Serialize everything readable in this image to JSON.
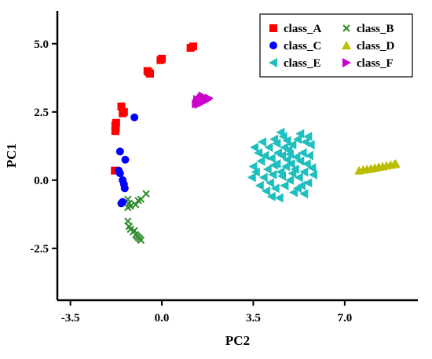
{
  "chart_data": {
    "type": "scatter",
    "xlabel": "PC2",
    "ylabel": "PC1",
    "xlim": [
      -4.0,
      9.8
    ],
    "ylim": [
      -4.4,
      6.2
    ],
    "xticks": [
      -3.5,
      0.0,
      3.5,
      7.0
    ],
    "xtick_labels": [
      "-3.5",
      "0.0",
      "3.5",
      "7.0"
    ],
    "yticks": [
      -2.5,
      0.0,
      2.5,
      5.0
    ],
    "ytick_labels": [
      "-2.5",
      "0.0",
      "2.5",
      "5.0"
    ],
    "grid": false,
    "legend_position": "top-right",
    "series": [
      {
        "name": "class_A",
        "marker": "square",
        "color": "#ff0000",
        "points": [
          [
            -1.8,
            0.35
          ],
          [
            -1.78,
            1.8
          ],
          [
            -1.76,
            1.9
          ],
          [
            -1.78,
            2.0
          ],
          [
            -1.75,
            2.1
          ],
          [
            -1.5,
            2.45
          ],
          [
            -1.45,
            2.5
          ],
          [
            -1.55,
            2.7
          ],
          [
            -0.55,
            4.0
          ],
          [
            -0.5,
            3.95
          ],
          [
            -0.45,
            3.9
          ],
          [
            -0.05,
            4.4
          ],
          [
            0.0,
            4.45
          ],
          [
            1.1,
            4.85
          ],
          [
            1.2,
            4.9
          ]
        ]
      },
      {
        "name": "class_B",
        "marker": "x",
        "color": "#2e8b2e",
        "points": [
          [
            -1.3,
            -0.7
          ],
          [
            -1.25,
            -0.85
          ],
          [
            -1.2,
            -0.95
          ],
          [
            -1.3,
            -1.0
          ],
          [
            -1.0,
            -0.9
          ],
          [
            -0.9,
            -0.75
          ],
          [
            -0.8,
            -0.7
          ],
          [
            -0.6,
            -0.5
          ],
          [
            -1.3,
            -1.5
          ],
          [
            -1.25,
            -1.7
          ],
          [
            -1.2,
            -1.8
          ],
          [
            -1.1,
            -1.9
          ],
          [
            -1.05,
            -1.85
          ],
          [
            -1.0,
            -2.0
          ],
          [
            -0.95,
            -2.05
          ],
          [
            -0.9,
            -2.1
          ],
          [
            -0.85,
            -2.15
          ],
          [
            -0.8,
            -2.2
          ]
        ]
      },
      {
        "name": "class_C",
        "marker": "circle",
        "color": "#0000ff",
        "points": [
          [
            -1.05,
            2.3
          ],
          [
            -1.6,
            1.05
          ],
          [
            -1.4,
            0.75
          ],
          [
            -1.65,
            0.35
          ],
          [
            -1.6,
            0.25
          ],
          [
            -1.5,
            0.0
          ],
          [
            -1.45,
            -0.15
          ],
          [
            -1.42,
            -0.3
          ],
          [
            -1.55,
            -0.85
          ],
          [
            -1.5,
            -0.8
          ]
        ]
      },
      {
        "name": "class_D",
        "marker": "triangle-up",
        "color": "#bdbd00",
        "points": [
          [
            7.55,
            0.35
          ],
          [
            7.7,
            0.38
          ],
          [
            7.85,
            0.4
          ],
          [
            8.0,
            0.42
          ],
          [
            8.15,
            0.45
          ],
          [
            8.3,
            0.48
          ],
          [
            8.45,
            0.5
          ],
          [
            8.6,
            0.53
          ],
          [
            8.75,
            0.56
          ],
          [
            8.9,
            0.58
          ],
          [
            8.95,
            0.6
          ]
        ]
      },
      {
        "name": "class_E",
        "marker": "triangle-left",
        "color": "#1fbfbf",
        "points": [
          [
            3.5,
            0.5
          ],
          [
            3.55,
            1.2
          ],
          [
            3.6,
            0.3
          ],
          [
            3.7,
            1.0
          ],
          [
            3.75,
            -0.2
          ],
          [
            3.8,
            0.7
          ],
          [
            3.85,
            1.4
          ],
          [
            3.9,
            0.1
          ],
          [
            3.95,
            0.9
          ],
          [
            4.0,
            -0.4
          ],
          [
            4.05,
            0.4
          ],
          [
            4.1,
            1.2
          ],
          [
            4.15,
            -0.1
          ],
          [
            4.2,
            0.8
          ],
          [
            4.25,
            0.2
          ],
          [
            4.3,
            1.5
          ],
          [
            4.35,
            -0.3
          ],
          [
            4.4,
            0.6
          ],
          [
            4.45,
            1.0
          ],
          [
            4.5,
            -0.65
          ],
          [
            4.55,
            0.3
          ],
          [
            4.6,
            0.9
          ],
          [
            4.65,
            1.6
          ],
          [
            4.7,
            -0.2
          ],
          [
            4.75,
            0.5
          ],
          [
            4.8,
            0.75
          ],
          [
            4.85,
            1.1
          ],
          [
            4.9,
            0.0
          ],
          [
            4.95,
            0.6
          ],
          [
            5.0,
            1.3
          ],
          [
            5.05,
            -0.45
          ],
          [
            5.1,
            0.4
          ],
          [
            5.15,
            0.85
          ],
          [
            5.2,
            1.5
          ],
          [
            5.25,
            0.1
          ],
          [
            5.3,
            0.7
          ],
          [
            5.35,
            -0.2
          ],
          [
            5.4,
            1.0
          ],
          [
            5.45,
            0.3
          ],
          [
            5.5,
            1.4
          ],
          [
            5.55,
            0.6
          ],
          [
            5.6,
            -0.1
          ],
          [
            5.65,
            0.9
          ],
          [
            5.7,
            1.3
          ],
          [
            5.75,
            0.45
          ],
          [
            4.4,
            1.35
          ],
          [
            4.6,
            0.15
          ],
          [
            4.8,
            1.45
          ],
          [
            5.0,
            0.25
          ],
          [
            5.2,
            -0.3
          ],
          [
            4.3,
            0.55
          ],
          [
            4.9,
            0.95
          ],
          [
            3.45,
            0.1
          ],
          [
            5.6,
            1.6
          ],
          [
            4.7,
            1.2
          ],
          [
            5.8,
            0.2
          ],
          [
            4.2,
            -0.6
          ],
          [
            5.3,
            1.7
          ],
          [
            4.55,
            1.75
          ],
          [
            5.45,
            -0.5
          ]
        ]
      },
      {
        "name": "class_F",
        "marker": "triangle-right",
        "color": "#cc00cc",
        "points": [
          [
            1.3,
            2.8
          ],
          [
            1.35,
            2.85
          ],
          [
            1.4,
            2.9
          ],
          [
            1.45,
            2.95
          ],
          [
            1.5,
            3.0
          ],
          [
            1.55,
            2.85
          ],
          [
            1.6,
            3.05
          ],
          [
            1.65,
            2.9
          ],
          [
            1.7,
            3.0
          ],
          [
            1.75,
            2.95
          ],
          [
            1.8,
            3.0
          ],
          [
            1.4,
            2.78
          ],
          [
            1.55,
            3.08
          ],
          [
            1.35,
            2.95
          ]
        ]
      }
    ]
  }
}
